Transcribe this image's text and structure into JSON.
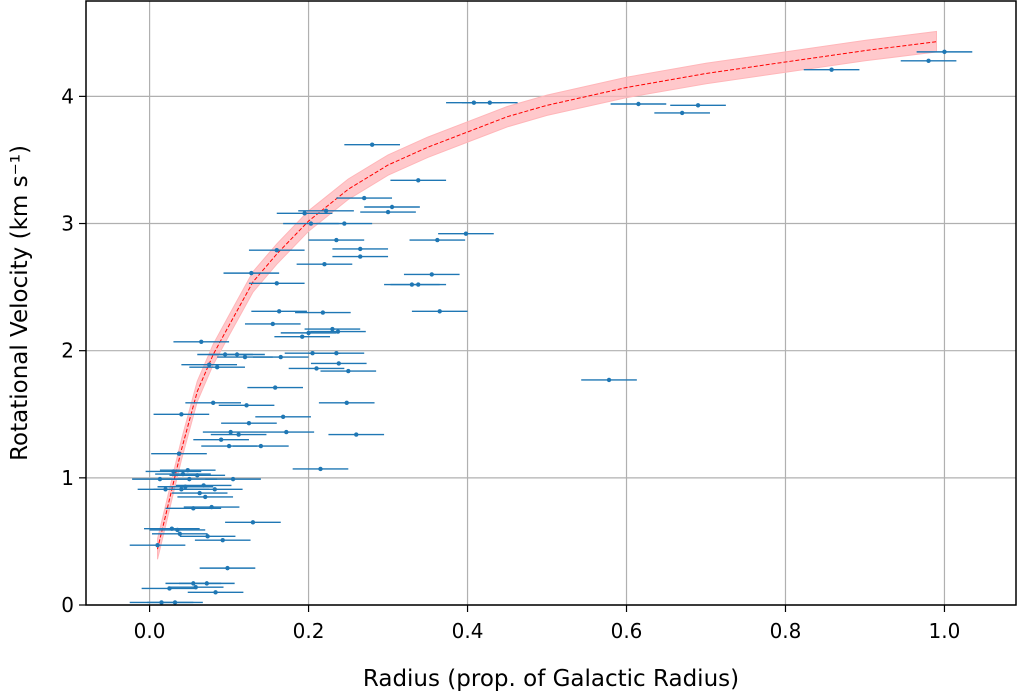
{
  "chart_data": {
    "type": "scatter",
    "title": "",
    "xlabel": "Radius (prop. of Galactic Radius)",
    "ylabel": "Rotational Velocity (km s⁻¹)",
    "xlim": [
      -0.08,
      1.09
    ],
    "ylim": [
      0,
      4.75
    ],
    "xticks": [
      0.0,
      0.2,
      0.4,
      0.6,
      0.8,
      1.0
    ],
    "xtick_labels": [
      "0.0",
      "0.2",
      "0.4",
      "0.6",
      "0.8",
      "1.0"
    ],
    "yticks": [
      0,
      1,
      2,
      3,
      4
    ],
    "ytick_labels": [
      "0",
      "1",
      "2",
      "3",
      "4"
    ],
    "grid": true,
    "colors": {
      "points": "#1f77b4",
      "fit_line": "#ff0000",
      "fit_band": "#ffb6b9",
      "grid": "#b0b0b0"
    },
    "fit": {
      "x": [
        0.01,
        0.02,
        0.03,
        0.04,
        0.06,
        0.08,
        0.1,
        0.13,
        0.16,
        0.2,
        0.25,
        0.3,
        0.35,
        0.4,
        0.45,
        0.5,
        0.6,
        0.7,
        0.8,
        0.9,
        0.99
      ],
      "y": [
        0.44,
        0.7,
        0.96,
        1.22,
        1.68,
        1.97,
        2.2,
        2.54,
        2.76,
        3.02,
        3.27,
        3.46,
        3.6,
        3.72,
        3.84,
        3.93,
        4.07,
        4.18,
        4.27,
        4.36,
        4.43
      ],
      "band": 0.08
    },
    "series": [
      {
        "points": [
          {
            "x": 0.01,
            "y": 0.47,
            "xerr": 0.035
          },
          {
            "x": 0.013,
            "y": 0.99,
            "xerr": 0.035
          },
          {
            "x": 0.015,
            "y": 0.02,
            "xerr": 0.04
          },
          {
            "x": 0.02,
            "y": 0.91,
            "xerr": 0.035
          },
          {
            "x": 0.025,
            "y": 0.13,
            "xerr": 0.035
          },
          {
            "x": 0.028,
            "y": 0.6,
            "xerr": 0.035
          },
          {
            "x": 0.03,
            "y": 1.05,
            "xerr": 0.035
          },
          {
            "x": 0.032,
            "y": 0.02,
            "xerr": 0.035
          },
          {
            "x": 0.035,
            "y": 0.59,
            "xerr": 0.035
          },
          {
            "x": 0.037,
            "y": 1.19,
            "xerr": 0.035
          },
          {
            "x": 0.038,
            "y": 0.56,
            "xerr": 0.035
          },
          {
            "x": 0.04,
            "y": 1.5,
            "xerr": 0.035
          },
          {
            "x": 0.04,
            "y": 0.91,
            "xerr": 0.035
          },
          {
            "x": 0.042,
            "y": 1.03,
            "xerr": 0.035
          },
          {
            "x": 0.045,
            "y": 0.93,
            "xerr": 0.035
          },
          {
            "x": 0.048,
            "y": 1.06,
            "xerr": 0.035
          },
          {
            "x": 0.05,
            "y": 0.99,
            "xerr": 0.035
          },
          {
            "x": 0.055,
            "y": 0.76,
            "xerr": 0.035
          },
          {
            "x": 0.055,
            "y": 0.17,
            "xerr": 0.035
          },
          {
            "x": 0.058,
            "y": 0.14,
            "xerr": 0.035
          },
          {
            "x": 0.06,
            "y": 1.02,
            "xerr": 0.035
          },
          {
            "x": 0.063,
            "y": 0.88,
            "xerr": 0.035
          },
          {
            "x": 0.065,
            "y": 2.07,
            "xerr": 0.035
          },
          {
            "x": 0.068,
            "y": 0.94,
            "xerr": 0.035
          },
          {
            "x": 0.07,
            "y": 0.85,
            "xerr": 0.035
          },
          {
            "x": 0.072,
            "y": 0.17,
            "xerr": 0.035
          },
          {
            "x": 0.073,
            "y": 0.54,
            "xerr": 0.035
          },
          {
            "x": 0.075,
            "y": 1.89,
            "xerr": 0.035
          },
          {
            "x": 0.078,
            "y": 0.77,
            "xerr": 0.035
          },
          {
            "x": 0.08,
            "y": 1.59,
            "xerr": 0.035
          },
          {
            "x": 0.082,
            "y": 0.91,
            "xerr": 0.035
          },
          {
            "x": 0.083,
            "y": 0.1,
            "xerr": 0.035
          },
          {
            "x": 0.085,
            "y": 1.87,
            "xerr": 0.035
          },
          {
            "x": 0.09,
            "y": 1.3,
            "xerr": 0.035
          },
          {
            "x": 0.092,
            "y": 0.51,
            "xerr": 0.035
          },
          {
            "x": 0.095,
            "y": 1.97,
            "xerr": 0.035
          },
          {
            "x": 0.098,
            "y": 0.29,
            "xerr": 0.035
          },
          {
            "x": 0.1,
            "y": 1.25,
            "xerr": 0.035
          },
          {
            "x": 0.102,
            "y": 1.36,
            "xerr": 0.035
          },
          {
            "x": 0.105,
            "y": 0.99,
            "xerr": 0.035
          },
          {
            "x": 0.11,
            "y": 1.97,
            "xerr": 0.035
          },
          {
            "x": 0.112,
            "y": 1.34,
            "xerr": 0.035
          },
          {
            "x": 0.12,
            "y": 1.95,
            "xerr": 0.035
          },
          {
            "x": 0.122,
            "y": 1.57,
            "xerr": 0.035
          },
          {
            "x": 0.125,
            "y": 1.43,
            "xerr": 0.035
          },
          {
            "x": 0.128,
            "y": 2.61,
            "xerr": 0.035
          },
          {
            "x": 0.13,
            "y": 0.65,
            "xerr": 0.035
          },
          {
            "x": 0.14,
            "y": 1.25,
            "xerr": 0.035
          },
          {
            "x": 0.155,
            "y": 2.21,
            "xerr": 0.035
          },
          {
            "x": 0.158,
            "y": 1.71,
            "xerr": 0.035
          },
          {
            "x": 0.16,
            "y": 2.53,
            "xerr": 0.035
          },
          {
            "x": 0.16,
            "y": 2.79,
            "xerr": 0.035
          },
          {
            "x": 0.163,
            "y": 2.31,
            "xerr": 0.035
          },
          {
            "x": 0.165,
            "y": 1.95,
            "xerr": 0.035
          },
          {
            "x": 0.168,
            "y": 1.48,
            "xerr": 0.035
          },
          {
            "x": 0.172,
            "y": 1.36,
            "xerr": 0.035
          },
          {
            "x": 0.192,
            "y": 2.11,
            "xerr": 0.035
          },
          {
            "x": 0.195,
            "y": 3.08,
            "xerr": 0.035
          },
          {
            "x": 0.2,
            "y": 2.14,
            "xerr": 0.035
          },
          {
            "x": 0.203,
            "y": 3.0,
            "xerr": 0.035
          },
          {
            "x": 0.205,
            "y": 1.98,
            "xerr": 0.035
          },
          {
            "x": 0.21,
            "y": 1.86,
            "xerr": 0.035
          },
          {
            "x": 0.215,
            "y": 1.07,
            "xerr": 0.035
          },
          {
            "x": 0.218,
            "y": 2.3,
            "xerr": 0.035
          },
          {
            "x": 0.22,
            "y": 2.68,
            "xerr": 0.035
          },
          {
            "x": 0.222,
            "y": 3.1,
            "xerr": 0.035
          },
          {
            "x": 0.23,
            "y": 2.17,
            "xerr": 0.035
          },
          {
            "x": 0.235,
            "y": 1.98,
            "xerr": 0.035
          },
          {
            "x": 0.235,
            "y": 2.87,
            "xerr": 0.035
          },
          {
            "x": 0.237,
            "y": 2.15,
            "xerr": 0.035
          },
          {
            "x": 0.238,
            "y": 1.9,
            "xerr": 0.035
          },
          {
            "x": 0.245,
            "y": 3.0,
            "xerr": 0.035
          },
          {
            "x": 0.248,
            "y": 1.59,
            "xerr": 0.035
          },
          {
            "x": 0.25,
            "y": 1.84,
            "xerr": 0.035
          },
          {
            "x": 0.26,
            "y": 1.34,
            "xerr": 0.035
          },
          {
            "x": 0.265,
            "y": 2.74,
            "xerr": 0.035
          },
          {
            "x": 0.265,
            "y": 2.8,
            "xerr": 0.035
          },
          {
            "x": 0.27,
            "y": 3.2,
            "xerr": 0.035
          },
          {
            "x": 0.28,
            "y": 3.62,
            "xerr": 0.035
          },
          {
            "x": 0.3,
            "y": 3.09,
            "xerr": 0.035
          },
          {
            "x": 0.305,
            "y": 3.13,
            "xerr": 0.035
          },
          {
            "x": 0.33,
            "y": 2.52,
            "xerr": 0.035
          },
          {
            "x": 0.338,
            "y": 2.52,
            "xerr": 0.035
          },
          {
            "x": 0.338,
            "y": 3.34,
            "xerr": 0.035
          },
          {
            "x": 0.355,
            "y": 2.6,
            "xerr": 0.035
          },
          {
            "x": 0.362,
            "y": 2.87,
            "xerr": 0.035
          },
          {
            "x": 0.365,
            "y": 2.31,
            "xerr": 0.035
          },
          {
            "x": 0.398,
            "y": 2.92,
            "xerr": 0.035
          },
          {
            "x": 0.408,
            "y": 3.95,
            "xerr": 0.035
          },
          {
            "x": 0.428,
            "y": 3.95,
            "xerr": 0.035
          },
          {
            "x": 0.578,
            "y": 1.77,
            "xerr": 0.035
          },
          {
            "x": 0.615,
            "y": 3.94,
            "xerr": 0.035
          },
          {
            "x": 0.67,
            "y": 3.87,
            "xerr": 0.035
          },
          {
            "x": 0.69,
            "y": 3.93,
            "xerr": 0.035
          },
          {
            "x": 0.858,
            "y": 4.21,
            "xerr": 0.035
          },
          {
            "x": 0.98,
            "y": 4.28,
            "xerr": 0.035
          },
          {
            "x": 1.0,
            "y": 4.35,
            "xerr": 0.035
          }
        ]
      }
    ]
  }
}
